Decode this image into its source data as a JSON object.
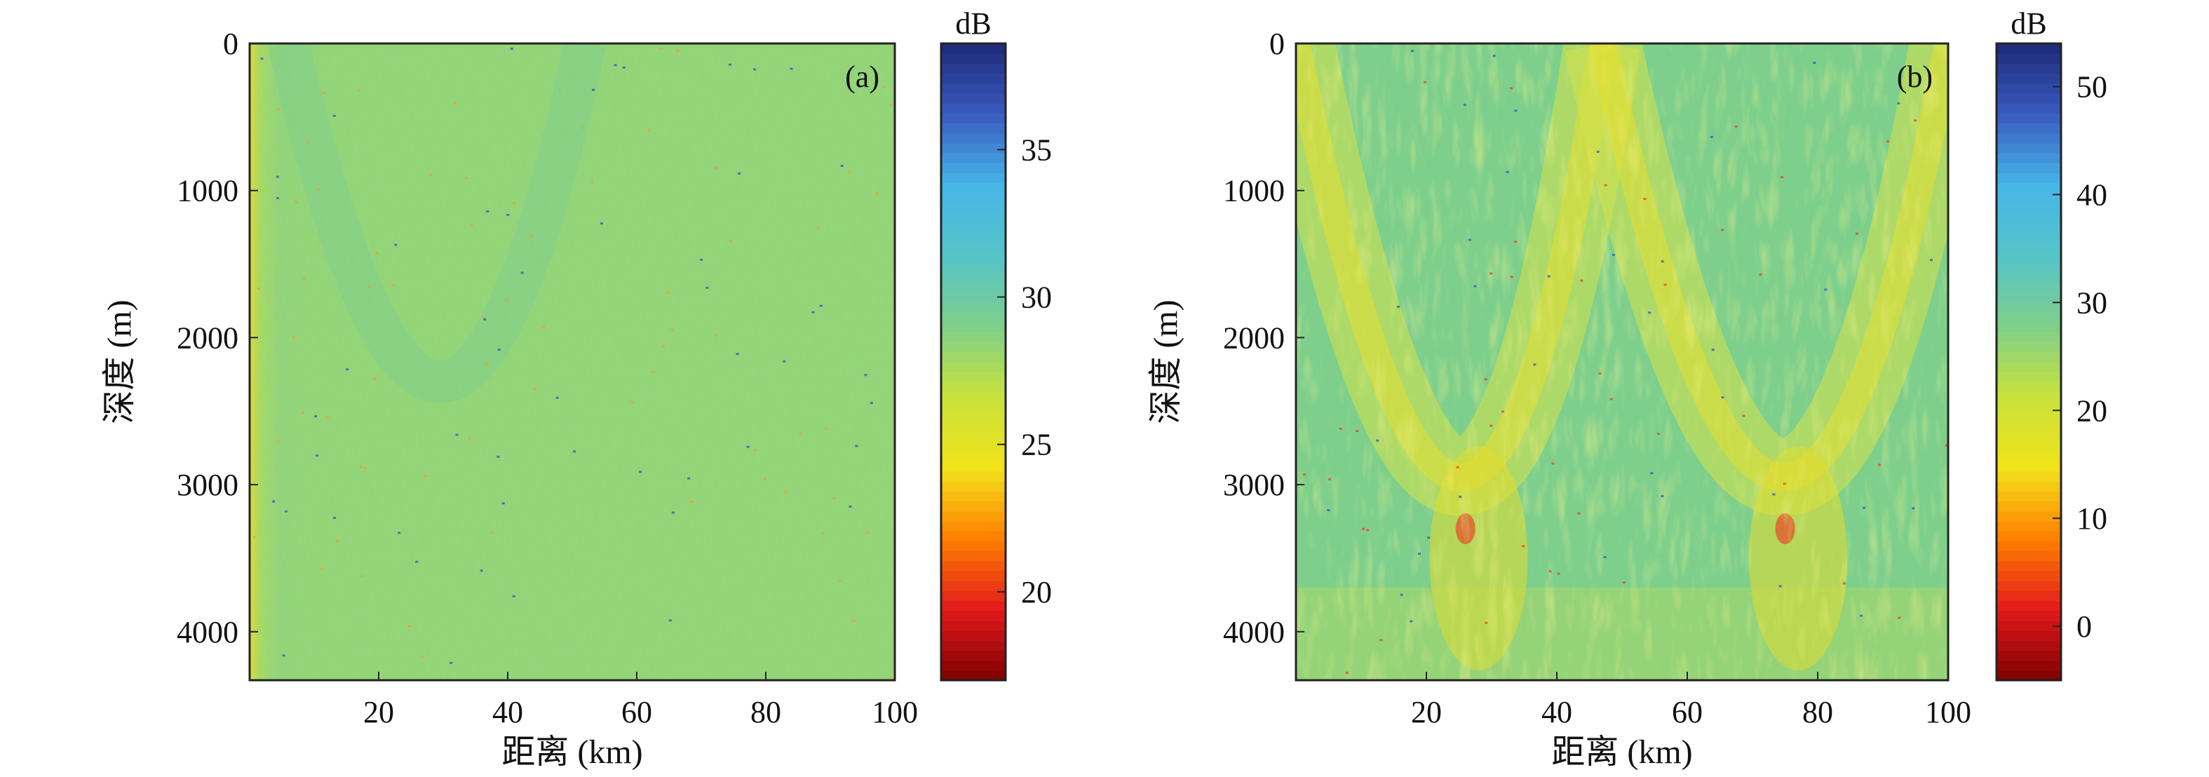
{
  "chart_data": [
    {
      "type": "heatmap",
      "panel_label": "(a)",
      "xlabel": "距离 (km)",
      "ylabel": "深度 (m)",
      "xlim": [
        0,
        100
      ],
      "ylim": [
        0,
        4330
      ],
      "y_inverted": true,
      "x_ticks": [
        20,
        40,
        60,
        80,
        100
      ],
      "y_ticks": [
        0,
        1000,
        2000,
        3000,
        4000
      ],
      "colorbar": {
        "label": "dB",
        "range": [
          17,
          38.6
        ],
        "ticks": [
          20,
          25,
          30,
          35
        ]
      },
      "field": {
        "base_value": 28.4,
        "description_terms": [
          "near-source band"
        ]
      }
    },
    {
      "type": "heatmap",
      "panel_label": "(b)",
      "xlabel": "距离 (km)",
      "ylabel": "深度 (m)",
      "xlim": [
        0,
        100
      ],
      "ylim": [
        0,
        4330
      ],
      "y_inverted": true,
      "x_ticks": [
        20,
        40,
        60,
        80,
        100
      ],
      "y_ticks": [
        0,
        1000,
        2000,
        3000,
        4000
      ],
      "colorbar": {
        "label": "dB",
        "range": [
          -5,
          54
        ],
        "ticks": [
          0,
          10,
          20,
          30,
          40,
          50
        ]
      },
      "field": {
        "base_value": 28,
        "convergence_arcs": [
          {
            "x_start": 0,
            "x_end": 47,
            "x_min": 27,
            "depth_min": 3050
          },
          {
            "x_start": 47,
            "x_end": 100,
            "x_min": 76,
            "depth_min": 3050
          }
        ]
      }
    }
  ],
  "colors": {
    "colormap": [
      "#7f0000",
      "#e31a1c",
      "#ff7f00",
      "#f1e21a",
      "#c9e23a",
      "#7fcf8a",
      "#55c4c8",
      "#46b6e8",
      "#3a5bc0",
      "#1d2a78"
    ]
  }
}
